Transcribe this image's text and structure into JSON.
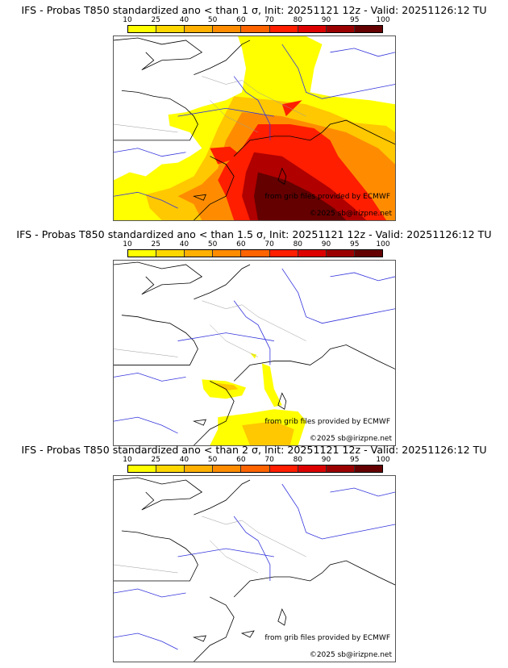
{
  "panels": [
    {
      "title": "IFS - Probas T850  standardized ano < than 1 σ, Init: 20251121 12z - Valid: 20251126:12 TU",
      "threshold_sigma": 1,
      "coverage": "high"
    },
    {
      "title": "IFS - Probas T850  standardized ano < than 1.5 σ, Init: 20251121 12z - Valid: 20251126:12 TU",
      "threshold_sigma": 1.5,
      "coverage": "low"
    },
    {
      "title": "IFS - Probas T850  standardized ano < than 2 σ, Init: 20251121 12z - Valid: 20251126:12 TU",
      "threshold_sigma": 2,
      "coverage": "none"
    }
  ],
  "colorbar": {
    "ticks": [
      "10",
      "25",
      "40",
      "50",
      "60",
      "70",
      "80",
      "90",
      "95",
      "100"
    ],
    "colors": [
      "#ffff00",
      "#ffd700",
      "#ffb000",
      "#ff8c00",
      "#ff6400",
      "#ff1e00",
      "#dc0000",
      "#9b0000",
      "#640000"
    ]
  },
  "credits": {
    "source": "from grib files provided by ECMWF",
    "copyright": "©2025 sb@irizpne.net"
  },
  "map_colors": {
    "coast": "#000000",
    "rivers": "#3333dd",
    "borders": "#aaaaaa"
  }
}
